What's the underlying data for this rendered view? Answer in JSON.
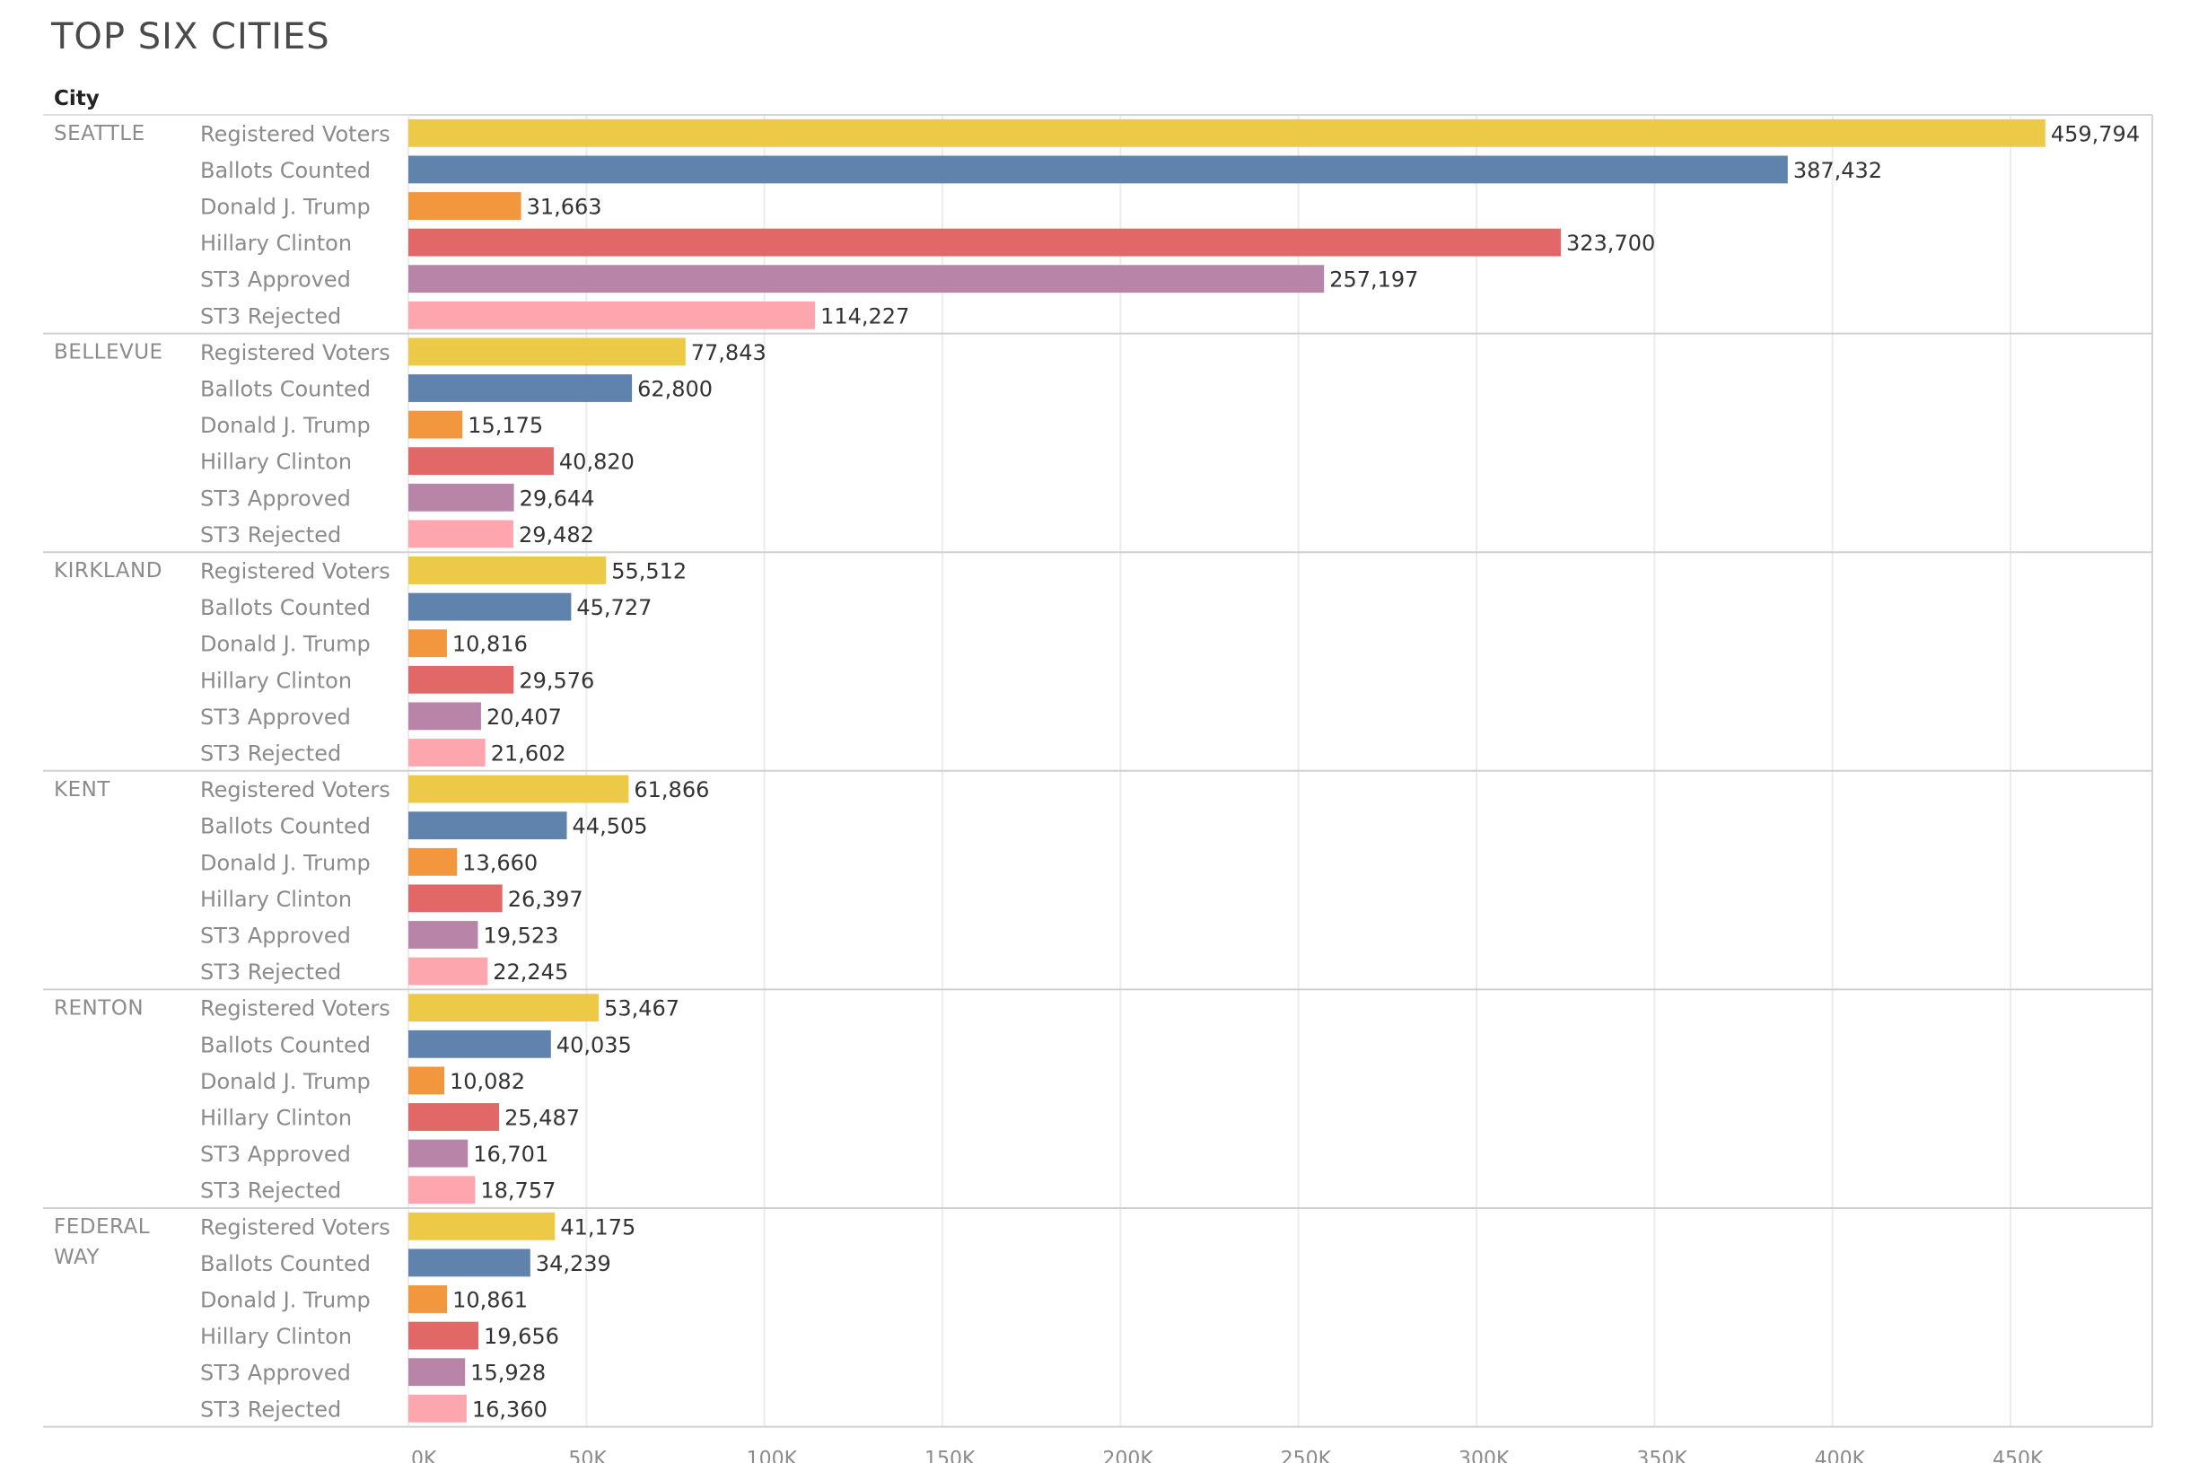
{
  "title": "TOP SIX CITIES",
  "chart_data": {
    "type": "bar",
    "orientation": "horizontal",
    "title": "TOP SIX CITIES",
    "row_header": "City",
    "measures": [
      "Registered Voters",
      "Ballots Counted",
      "Donald J. Trump",
      "Hillary Clinton",
      "ST3 Approved",
      "ST3 Rejected"
    ],
    "colors": [
      "#EDC948",
      "#5F83AD",
      "#F2973E",
      "#E26868",
      "#B885A9",
      "#FDA6AD"
    ],
    "groups": [
      {
        "city": [
          "SEATTLE"
        ],
        "values": [
          459794,
          387432,
          31663,
          323700,
          257197,
          114227
        ],
        "labels": [
          "459,794",
          "387,432",
          "31,663",
          "323,700",
          "257,197",
          "114,227"
        ]
      },
      {
        "city": [
          "BELLEVUE"
        ],
        "values": [
          77843,
          62800,
          15175,
          40820,
          29644,
          29482
        ],
        "labels": [
          "77,843",
          "62,800",
          "15,175",
          "40,820",
          "29,644",
          "29,482"
        ]
      },
      {
        "city": [
          "KIRKLAND"
        ],
        "values": [
          55512,
          45727,
          10816,
          29576,
          20407,
          21602
        ],
        "labels": [
          "55,512",
          "45,727",
          "10,816",
          "29,576",
          "20,407",
          "21,602"
        ]
      },
      {
        "city": [
          "KENT"
        ],
        "values": [
          61866,
          44505,
          13660,
          26397,
          19523,
          22245
        ],
        "labels": [
          "61,866",
          "44,505",
          "13,660",
          "26,397",
          "19,523",
          "22,245"
        ]
      },
      {
        "city": [
          "RENTON"
        ],
        "values": [
          53467,
          40035,
          10082,
          25487,
          16701,
          18757
        ],
        "labels": [
          "53,467",
          "40,035",
          "10,082",
          "25,487",
          "16,701",
          "18,757"
        ]
      },
      {
        "city": [
          "FEDERAL",
          "WAY"
        ],
        "values": [
          41175,
          34239,
          10861,
          19656,
          15928,
          16360
        ],
        "labels": [
          "41,175",
          "34,239",
          "10,861",
          "19,656",
          "15,928",
          "16,360"
        ]
      }
    ],
    "x_ticks": [
      0,
      50000,
      100000,
      150000,
      200000,
      250000,
      300000,
      350000,
      400000,
      450000
    ],
    "x_tick_labels": [
      "0K",
      "50K",
      "100K",
      "150K",
      "200K",
      "250K",
      "300K",
      "350K",
      "400K",
      "450K"
    ],
    "xlim": [
      0,
      500000
    ],
    "grid": "vertical"
  }
}
